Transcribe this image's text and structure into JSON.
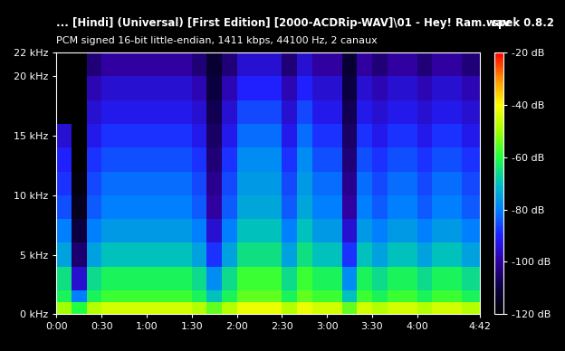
{
  "chart_data": {
    "type": "heatmap",
    "title": "... [Hindi] (Universal) [First Edition] [2000-ACDRip-WAV]\\01 - Hey! Ram.wav",
    "subtitle": "PCM signed 16-bit little-endian, 1411 kbps, 44100 Hz, 2 canaux",
    "annotations": [
      "spek 0.8.2"
    ],
    "x_edges": [
      0,
      10,
      20,
      30,
      40,
      50,
      60,
      70,
      80,
      90,
      100,
      110,
      120,
      130,
      140,
      150,
      160,
      170,
      180,
      190,
      200,
      210,
      220,
      230,
      240,
      250,
      260,
      270,
      280,
      282
    ],
    "y_edges": [
      0,
      1,
      2,
      4,
      6,
      8,
      10,
      12,
      14,
      16,
      18,
      20,
      22
    ],
    "cells_by_column": [
      [
        -50,
        -62,
        -65,
        -75,
        -80,
        -85,
        -88,
        -90,
        -95,
        -120,
        -120,
        -120
      ],
      [
        -60,
        -80,
        -95,
        -105,
        -110,
        -115,
        -118,
        -120,
        -120,
        -120,
        -120,
        -120
      ],
      [
        -48,
        -62,
        -66,
        -75,
        -80,
        -84,
        -86,
        -88,
        -92,
        -95,
        -98,
        -104
      ],
      [
        -45,
        -58,
        -62,
        -70,
        -76,
        -80,
        -82,
        -85,
        -88,
        -92,
        -95,
        -100
      ],
      [
        -45,
        -58,
        -62,
        -70,
        -76,
        -80,
        -82,
        -85,
        -88,
        -92,
        -95,
        -100
      ],
      [
        -45,
        -58,
        -62,
        -70,
        -76,
        -80,
        -82,
        -85,
        -88,
        -92,
        -95,
        -100
      ],
      [
        -45,
        -58,
        -62,
        -70,
        -76,
        -80,
        -82,
        -85,
        -88,
        -92,
        -95,
        -100
      ],
      [
        -45,
        -58,
        -62,
        -70,
        -76,
        -80,
        -82,
        -85,
        -88,
        -92,
        -95,
        -100
      ],
      [
        -45,
        -58,
        -62,
        -70,
        -76,
        -80,
        -82,
        -85,
        -88,
        -92,
        -95,
        -100
      ],
      [
        -48,
        -62,
        -66,
        -75,
        -80,
        -84,
        -86,
        -88,
        -92,
        -95,
        -98,
        -104
      ],
      [
        -55,
        -70,
        -78,
        -88,
        -95,
        -100,
        -102,
        -104,
        -106,
        -108,
        -110,
        -112
      ],
      [
        -48,
        -62,
        -66,
        -75,
        -80,
        -84,
        -86,
        -88,
        -92,
        -95,
        -98,
        -104
      ],
      [
        -42,
        -55,
        -58,
        -65,
        -70,
        -74,
        -76,
        -78,
        -82,
        -86,
        -90,
        -95
      ],
      [
        -42,
        -55,
        -58,
        -65,
        -70,
        -74,
        -76,
        -78,
        -82,
        -86,
        -90,
        -95
      ],
      [
        -42,
        -55,
        -58,
        -65,
        -70,
        -74,
        -76,
        -78,
        -82,
        -86,
        -90,
        -95
      ],
      [
        -48,
        -62,
        -66,
        -75,
        -80,
        -84,
        -86,
        -88,
        -92,
        -95,
        -98,
        -104
      ],
      [
        -42,
        -55,
        -58,
        -65,
        -70,
        -74,
        -76,
        -78,
        -82,
        -86,
        -90,
        -95
      ],
      [
        -45,
        -58,
        -62,
        -70,
        -76,
        -80,
        -82,
        -85,
        -88,
        -92,
        -95,
        -100
      ],
      [
        -45,
        -58,
        -62,
        -70,
        -76,
        -80,
        -82,
        -85,
        -88,
        -92,
        -95,
        -100
      ],
      [
        -55,
        -70,
        -78,
        -88,
        -95,
        -100,
        -102,
        -104,
        -106,
        -108,
        -110,
        -112
      ],
      [
        -45,
        -58,
        -62,
        -70,
        -76,
        -80,
        -82,
        -85,
        -88,
        -92,
        -95,
        -100
      ],
      [
        -48,
        -62,
        -66,
        -75,
        -80,
        -84,
        -86,
        -88,
        -92,
        -95,
        -98,
        -104
      ],
      [
        -45,
        -58,
        -62,
        -70,
        -76,
        -80,
        -82,
        -85,
        -88,
        -92,
        -95,
        -100
      ],
      [
        -45,
        -58,
        -62,
        -70,
        -76,
        -80,
        -82,
        -85,
        -88,
        -92,
        -95,
        -100
      ],
      [
        -48,
        -62,
        -66,
        -75,
        -80,
        -84,
        -86,
        -88,
        -92,
        -95,
        -98,
        -104
      ],
      [
        -45,
        -58,
        -62,
        -70,
        -76,
        -80,
        -82,
        -85,
        -88,
        -92,
        -95,
        -100
      ],
      [
        -45,
        -58,
        -62,
        -70,
        -76,
        -80,
        -82,
        -85,
        -88,
        -92,
        -95,
        -100
      ],
      [
        -48,
        -62,
        -66,
        -75,
        -80,
        -84,
        -86,
        -88,
        -92,
        -95,
        -98,
        -104
      ],
      [
        -48,
        -62,
        -66,
        -75,
        -80,
        -84,
        -86,
        -88,
        -92,
        -95,
        -98,
        -104
      ]
    ],
    "xlim": [
      0,
      282
    ],
    "xticks": [
      {
        "value": 0,
        "label": "0:00"
      },
      {
        "value": 30,
        "label": "0:30"
      },
      {
        "value": 60,
        "label": "1:00"
      },
      {
        "value": 90,
        "label": "1:30"
      },
      {
        "value": 120,
        "label": "2:00"
      },
      {
        "value": 150,
        "label": "2:30"
      },
      {
        "value": 180,
        "label": "3:00"
      },
      {
        "value": 210,
        "label": "3:30"
      },
      {
        "value": 240,
        "label": "4:00"
      },
      {
        "value": 282,
        "label": "4:42"
      }
    ],
    "ylim": [
      0,
      22
    ],
    "yticks": [
      {
        "value": 0,
        "label": "0 kHz"
      },
      {
        "value": 5,
        "label": "5 kHz"
      },
      {
        "value": 10,
        "label": "10 kHz"
      },
      {
        "value": 15,
        "label": "15 kHz"
      },
      {
        "value": 20,
        "label": "20 kHz"
      },
      {
        "value": 22,
        "label": "22 kHz"
      }
    ],
    "colorbar_range": [
      -120,
      -20
    ],
    "colorbar_ticks": [
      {
        "value": -20,
        "label": "-20 dB"
      },
      {
        "value": -40,
        "label": "-40 dB"
      },
      {
        "value": -60,
        "label": "-60 dB"
      },
      {
        "value": -80,
        "label": "-80 dB"
      },
      {
        "value": -100,
        "label": "-100 dB"
      },
      {
        "value": -120,
        "label": "-120 dB"
      }
    ]
  }
}
